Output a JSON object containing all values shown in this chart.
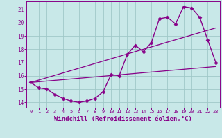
{
  "xlabel": "Windchill (Refroidissement éolien,°C)",
  "xlabel_fontsize": 6.5,
  "background_color": "#c8e8e8",
  "grid_color": "#a0c8c8",
  "line_color": "#880088",
  "xlim": [
    -0.5,
    23.5
  ],
  "ylim": [
    13.6,
    21.6
  ],
  "yticks": [
    14,
    15,
    16,
    17,
    18,
    19,
    20,
    21
  ],
  "xticks": [
    0,
    1,
    2,
    3,
    4,
    5,
    6,
    7,
    8,
    9,
    10,
    11,
    12,
    13,
    14,
    15,
    16,
    17,
    18,
    19,
    20,
    21,
    22,
    23
  ],
  "series": [
    {
      "x": [
        0,
        1,
        2,
        3,
        4,
        5,
        6,
        7,
        8,
        9,
        10,
        11,
        12,
        13,
        14,
        15,
        16,
        17,
        18,
        19,
        20,
        21,
        22,
        23
      ],
      "y": [
        15.5,
        15.1,
        15.0,
        14.6,
        14.3,
        14.1,
        14.0,
        14.1,
        14.3,
        14.8,
        16.1,
        16.0,
        17.6,
        18.3,
        17.8,
        18.5,
        20.3,
        20.4,
        19.9,
        21.2,
        21.1,
        20.4,
        18.7,
        17.0
      ],
      "marker": "D",
      "markersize": 2.5,
      "linewidth": 1.0
    },
    {
      "x": [
        0,
        23
      ],
      "y": [
        15.5,
        16.7
      ],
      "marker": null,
      "linewidth": 0.9
    },
    {
      "x": [
        0,
        23
      ],
      "y": [
        15.5,
        19.6
      ],
      "marker": null,
      "linewidth": 0.9
    }
  ]
}
